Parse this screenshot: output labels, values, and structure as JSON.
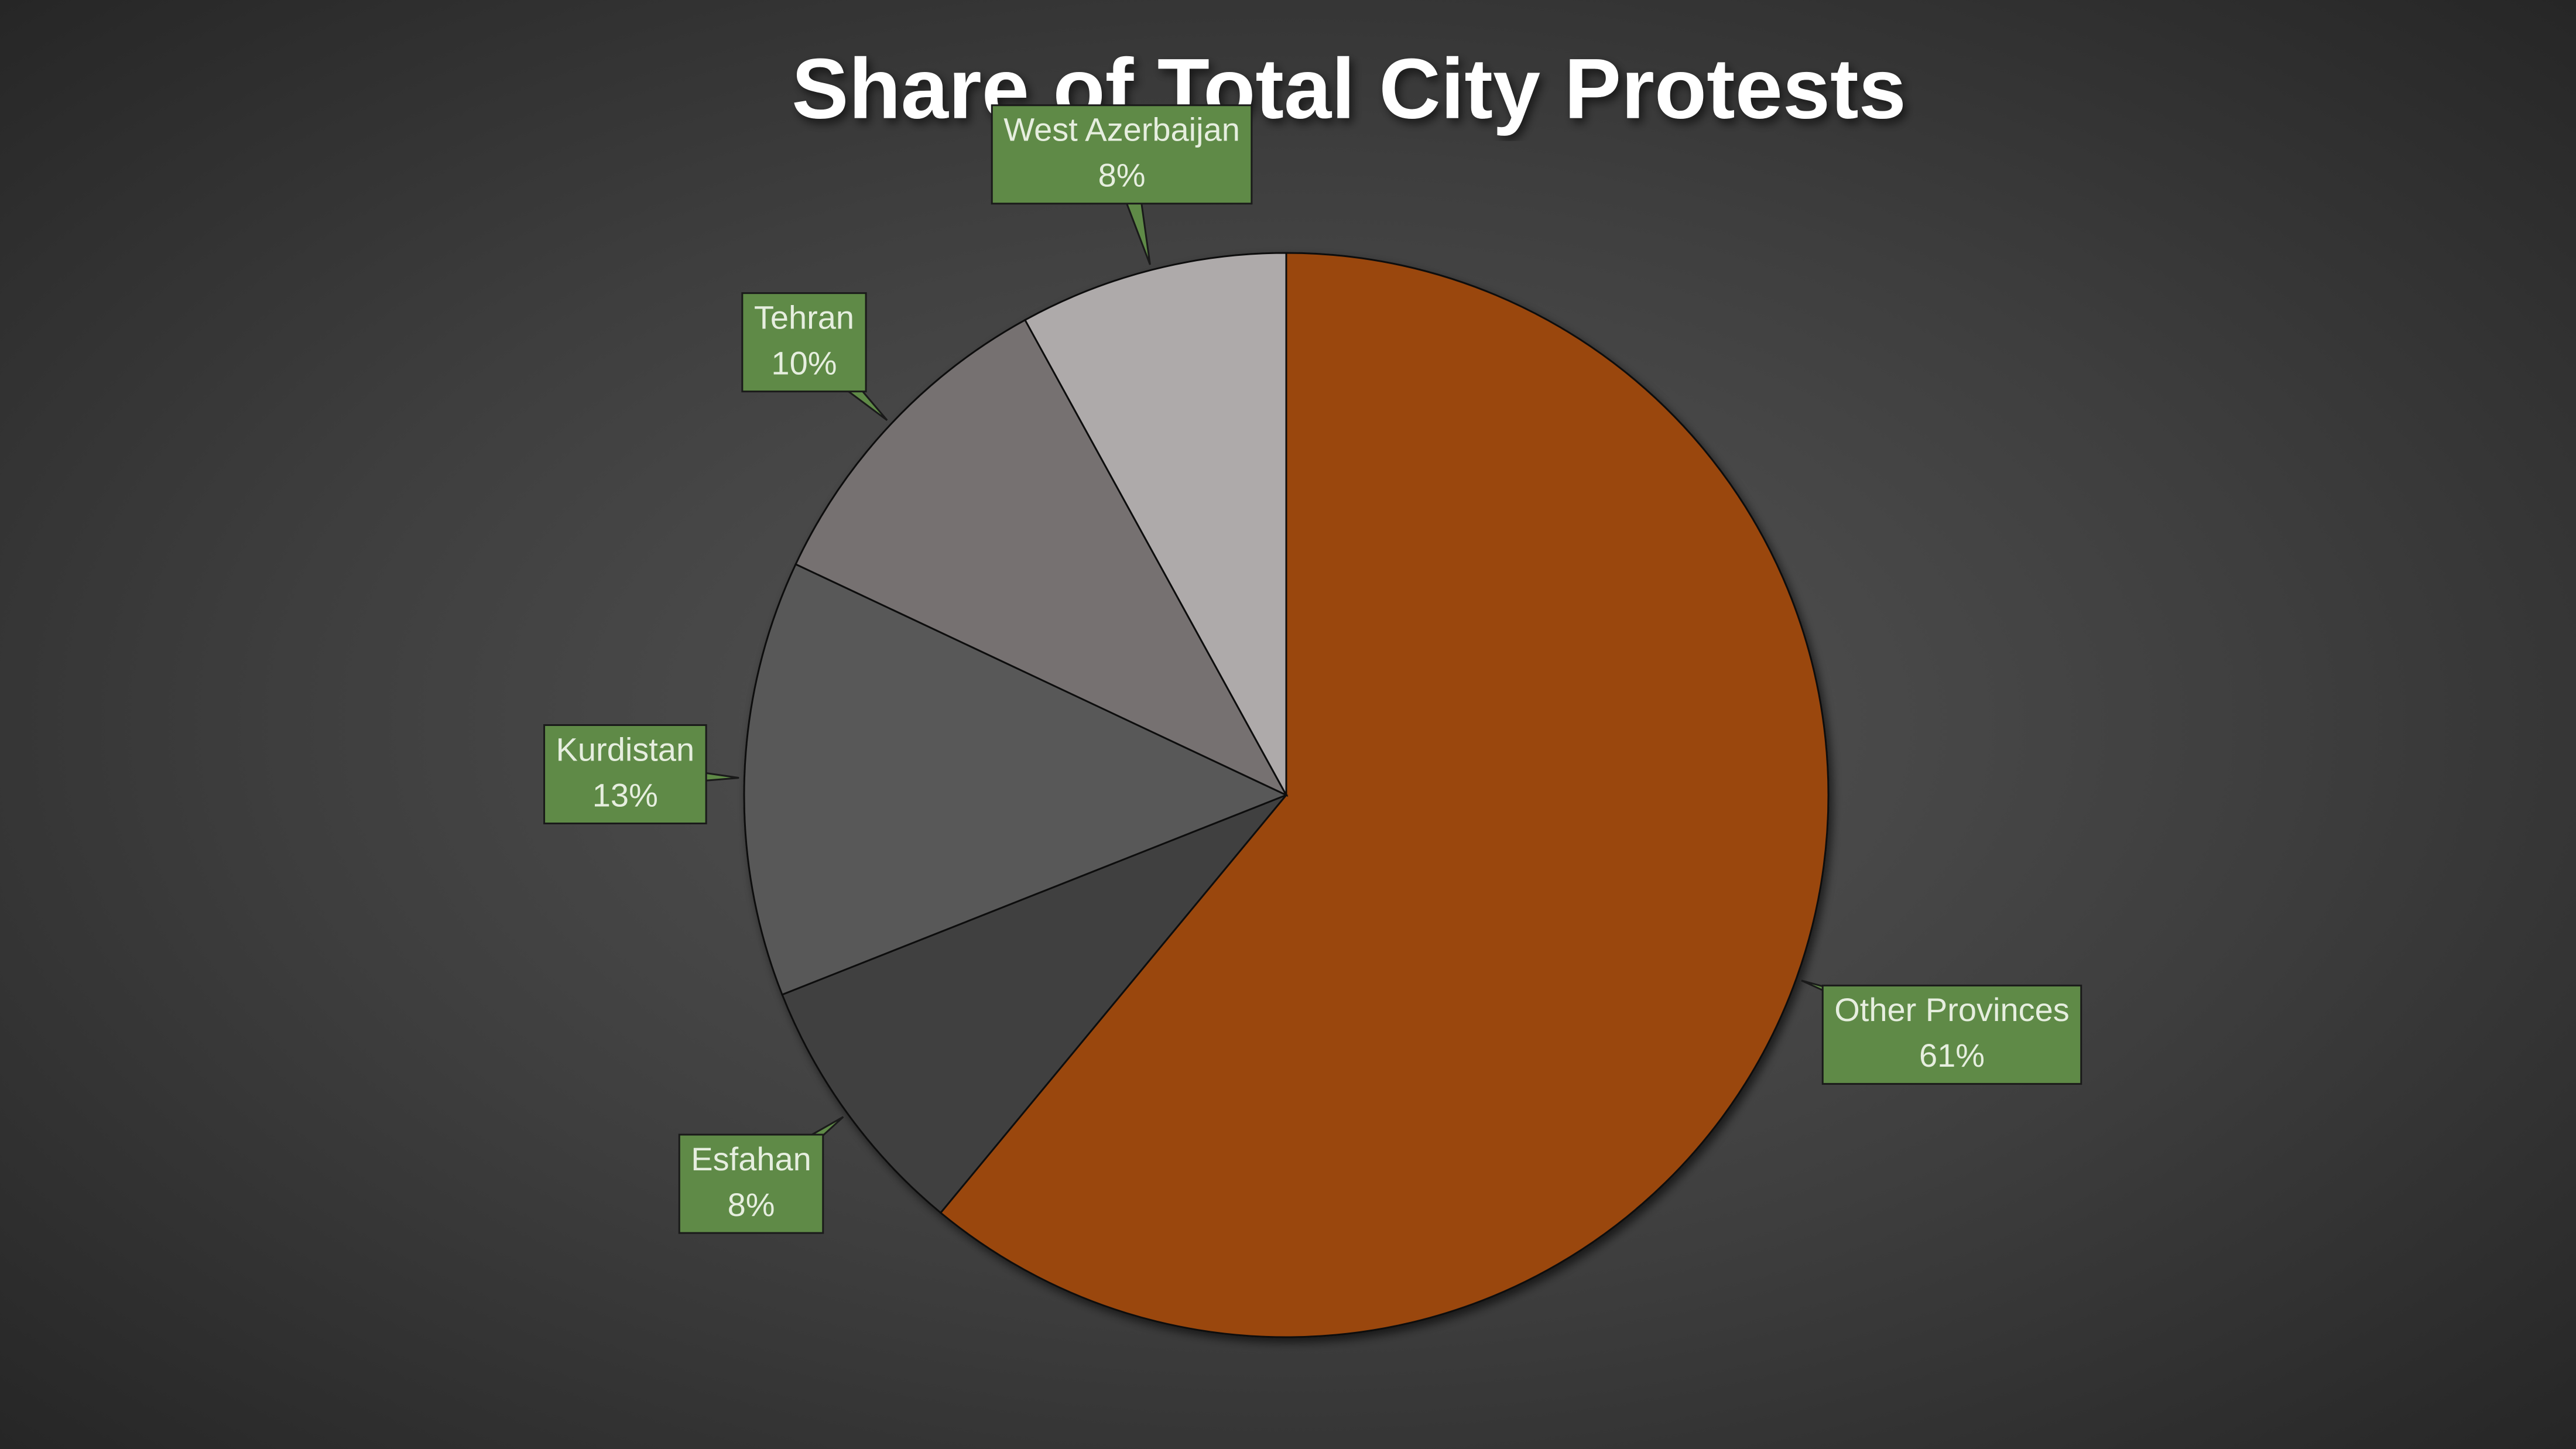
{
  "chart_data": {
    "type": "pie",
    "title": "Share of Total City Protests",
    "categories": [
      "Other Provinces",
      "Esfahan",
      "Kurdistan",
      "Tehran",
      "West Azerbaijan"
    ],
    "values": [
      61,
      8,
      13,
      10,
      8
    ],
    "value_labels": [
      "61%",
      "8%",
      "13%",
      "10%",
      "8%"
    ],
    "colors": [
      "#9a460c",
      "#404040",
      "#595959",
      "#767171",
      "#aeaaaa"
    ],
    "label_color": "#5f8a47"
  }
}
